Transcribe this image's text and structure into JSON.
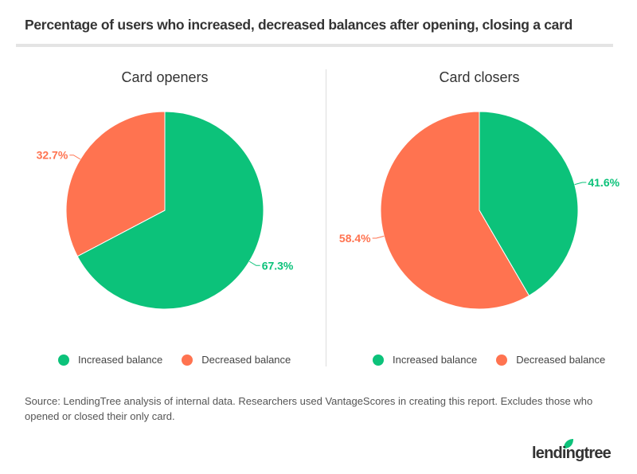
{
  "title": "Percentage of users who increased, decreased balances after opening, closing a card",
  "colors": {
    "increased": "#0CC27A",
    "decreased": "#FF7350"
  },
  "chart_data": [
    {
      "type": "pie",
      "title": "Card openers",
      "labels": [
        "Increased balance",
        "Decreased balance"
      ],
      "values": [
        67.3,
        32.7
      ],
      "value_labels": [
        "67.3%",
        "32.7%"
      ]
    },
    {
      "type": "pie",
      "title": "Card closers",
      "labels": [
        "Increased balance",
        "Decreased balance"
      ],
      "values": [
        41.6,
        58.4
      ],
      "value_labels": [
        "41.6%",
        "58.4%"
      ]
    }
  ],
  "source": "Source: LendingTree analysis of internal data. Researchers used VantageScores in creating this report. Excludes those who opened or closed their only card.",
  "logo_text": "lendingtree"
}
